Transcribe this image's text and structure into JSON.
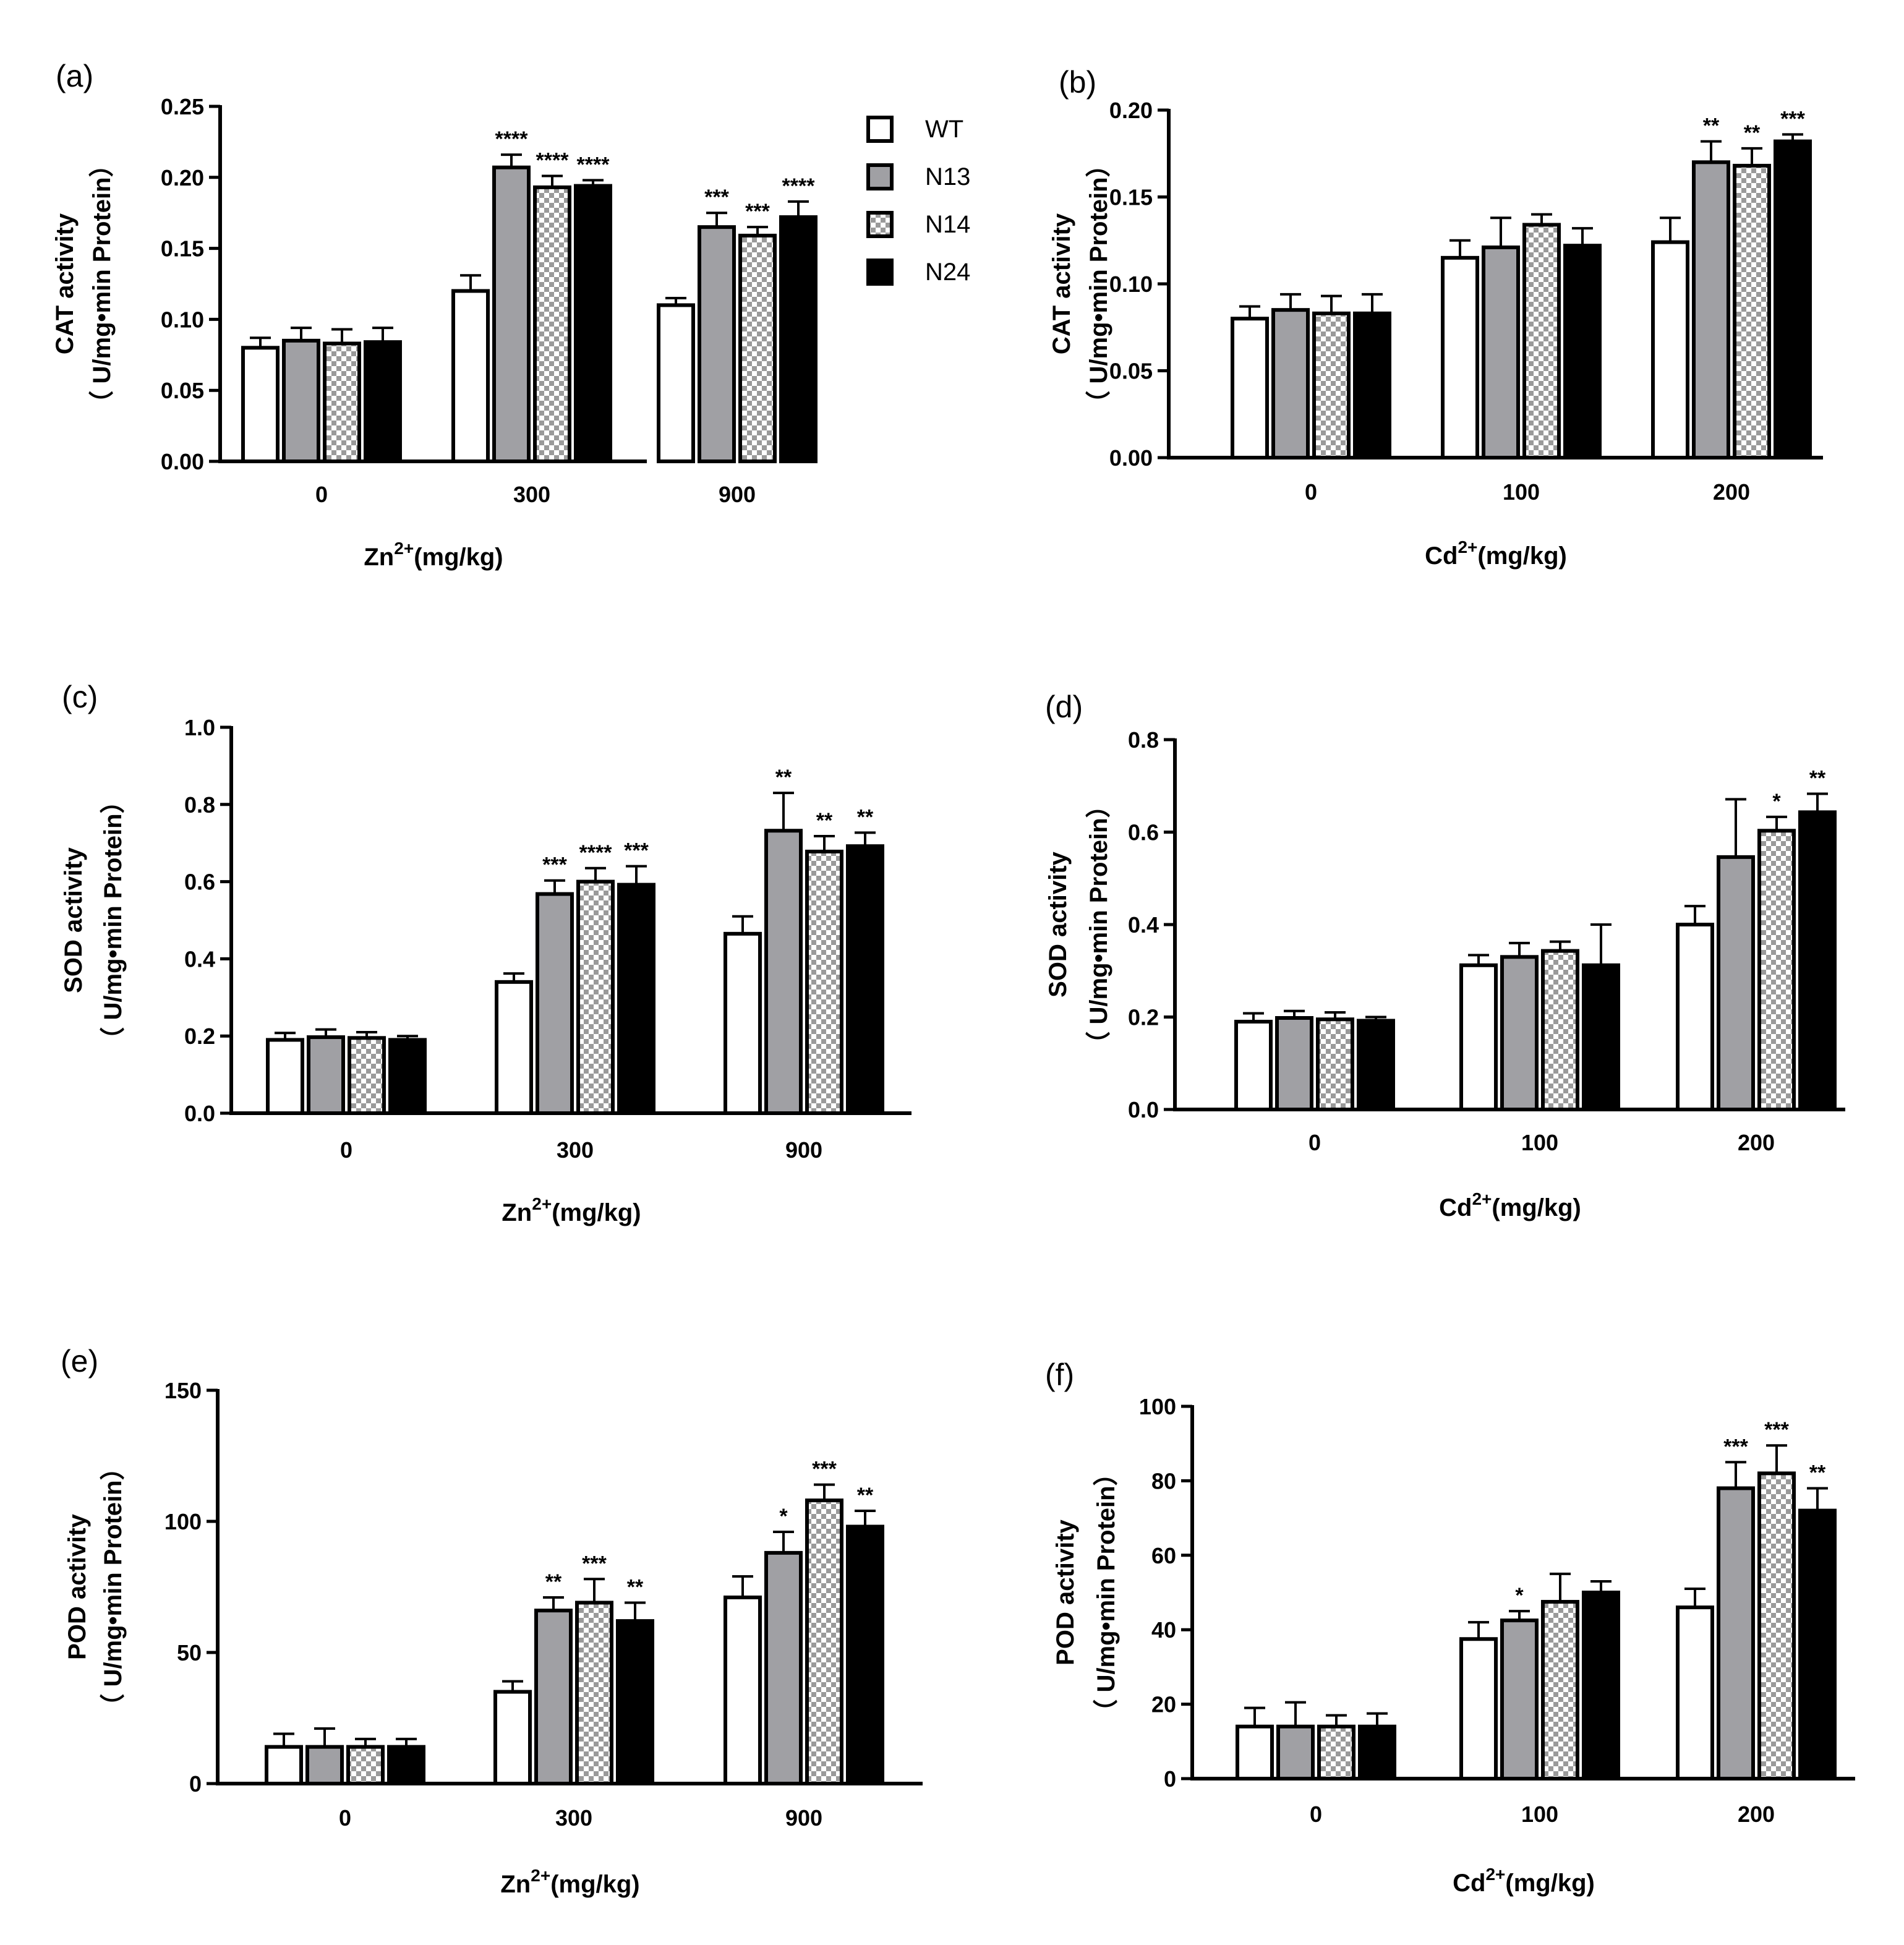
{
  "legend": [
    "WT",
    "N13",
    "N14",
    "N24"
  ],
  "colors": {
    "WT": "#ffffff",
    "N13": "#a0a0a4",
    "N14": "pattern",
    "N24": "#000000",
    "axis": "#000000"
  },
  "chart_data": [
    {
      "id": "a",
      "panel_label": "(a)",
      "type": "bar",
      "title": "",
      "ylabel_line1": "CAT activity",
      "ylabel_line2": "（ U/mg•min Protein）",
      "xlabel_base": "Zn",
      "xlabel_sup": "2+",
      "xlabel_unit": "(mg/kg)",
      "categories": [
        "0",
        "300",
        "900"
      ],
      "ylim": [
        0,
        0.25
      ],
      "yticks": [
        0.0,
        0.05,
        0.1,
        0.15,
        0.2,
        0.25
      ],
      "ytick_labels": [
        "0.00",
        "0.05",
        "0.10",
        "0.15",
        "0.20",
        "0.25"
      ],
      "series": [
        {
          "name": "WT",
          "values": [
            0.08,
            0.12,
            0.11
          ],
          "errors": [
            0.007,
            0.011,
            0.005
          ],
          "sig": [
            "",
            "",
            ""
          ]
        },
        {
          "name": "N13",
          "values": [
            0.085,
            0.207,
            0.165
          ],
          "errors": [
            0.009,
            0.009,
            0.01
          ],
          "sig": [
            "",
            "****",
            "***"
          ]
        },
        {
          "name": "N14",
          "values": [
            0.083,
            0.193,
            0.159
          ],
          "errors": [
            0.01,
            0.008,
            0.006
          ],
          "sig": [
            "",
            "****",
            "***"
          ]
        },
        {
          "name": "N24",
          "values": [
            0.084,
            0.194,
            0.172
          ],
          "errors": [
            0.01,
            0.004,
            0.011
          ],
          "sig": [
            "",
            "****",
            "****"
          ]
        }
      ]
    },
    {
      "id": "b",
      "panel_label": "(b)",
      "type": "bar",
      "title": "",
      "ylabel_line1": "CAT activity",
      "ylabel_line2": "（ U/mg•min Protein）",
      "xlabel_base": "Cd",
      "xlabel_sup": "2+",
      "xlabel_unit": "(mg/kg)",
      "categories": [
        "0",
        "100",
        "200"
      ],
      "ylim": [
        0,
        0.2
      ],
      "yticks": [
        0.0,
        0.05,
        0.1,
        0.15,
        0.2
      ],
      "ytick_labels": [
        "0.00",
        "0.05",
        "0.10",
        "0.15",
        "0.20"
      ],
      "series": [
        {
          "name": "WT",
          "values": [
            0.08,
            0.115,
            0.124
          ],
          "errors": [
            0.007,
            0.01,
            0.014
          ],
          "sig": [
            "",
            "",
            ""
          ]
        },
        {
          "name": "N13",
          "values": [
            0.085,
            0.121,
            0.17
          ],
          "errors": [
            0.009,
            0.017,
            0.012
          ],
          "sig": [
            "",
            "",
            "**"
          ]
        },
        {
          "name": "N14",
          "values": [
            0.083,
            0.134,
            0.168
          ],
          "errors": [
            0.01,
            0.006,
            0.01
          ],
          "sig": [
            "",
            "",
            "**"
          ]
        },
        {
          "name": "N24",
          "values": [
            0.083,
            0.122,
            0.182
          ],
          "errors": [
            0.011,
            0.01,
            0.004
          ],
          "sig": [
            "",
            "",
            "***"
          ]
        }
      ]
    },
    {
      "id": "c",
      "panel_label": "(c)",
      "type": "bar",
      "title": "",
      "ylabel_line1": "SOD activity",
      "ylabel_line2": "（ U/mg•min Protein）",
      "xlabel_base": "Zn",
      "xlabel_sup": "2+",
      "xlabel_unit": "(mg/kg)",
      "categories": [
        "0",
        "300",
        "900"
      ],
      "ylim": [
        0,
        1.0
      ],
      "yticks": [
        0.0,
        0.2,
        0.4,
        0.6,
        0.8,
        1.0
      ],
      "ytick_labels": [
        "0.0",
        "0.2",
        "0.4",
        "0.6",
        "0.8",
        "1.0"
      ],
      "series": [
        {
          "name": "WT",
          "values": [
            0.19,
            0.34,
            0.465
          ],
          "errors": [
            0.018,
            0.022,
            0.045
          ],
          "sig": [
            "",
            "",
            ""
          ]
        },
        {
          "name": "N13",
          "values": [
            0.197,
            0.568,
            0.732
          ],
          "errors": [
            0.02,
            0.035,
            0.098
          ],
          "sig": [
            "",
            "***",
            "**"
          ]
        },
        {
          "name": "N14",
          "values": [
            0.195,
            0.6,
            0.678
          ],
          "errors": [
            0.015,
            0.035,
            0.04
          ],
          "sig": [
            "",
            "****",
            "**"
          ]
        },
        {
          "name": "N24",
          "values": [
            0.19,
            0.592,
            0.692
          ],
          "errors": [
            0.01,
            0.048,
            0.035
          ],
          "sig": [
            "",
            "***",
            "**"
          ]
        }
      ]
    },
    {
      "id": "d",
      "panel_label": "(d)",
      "type": "bar",
      "title": "",
      "ylabel_line1": "SOD activity",
      "ylabel_line2": "（ U/mg•min Protein）",
      "xlabel_base": "Cd",
      "xlabel_sup": "2+",
      "xlabel_unit": "(mg/kg)",
      "categories": [
        "0",
        "100",
        "200"
      ],
      "ylim": [
        0,
        0.8
      ],
      "yticks": [
        0.0,
        0.2,
        0.4,
        0.6,
        0.8
      ],
      "ytick_labels": [
        "0.0",
        "0.2",
        "0.4",
        "0.6",
        "0.8"
      ],
      "series": [
        {
          "name": "WT",
          "values": [
            0.19,
            0.312,
            0.4
          ],
          "errors": [
            0.018,
            0.022,
            0.04
          ],
          "sig": [
            "",
            "",
            ""
          ]
        },
        {
          "name": "N13",
          "values": [
            0.198,
            0.33,
            0.546
          ],
          "errors": [
            0.015,
            0.03,
            0.125
          ],
          "sig": [
            "",
            "",
            ""
          ]
        },
        {
          "name": "N14",
          "values": [
            0.195,
            0.343,
            0.603
          ],
          "errors": [
            0.015,
            0.02,
            0.03
          ],
          "sig": [
            "",
            "",
            "*"
          ]
        },
        {
          "name": "N24",
          "values": [
            0.192,
            0.312,
            0.643
          ],
          "errors": [
            0.008,
            0.088,
            0.04
          ],
          "sig": [
            "",
            "",
            "**"
          ]
        }
      ]
    },
    {
      "id": "e",
      "panel_label": "(e)",
      "type": "bar",
      "title": "",
      "ylabel_line1": "POD activity",
      "ylabel_line2": "（ U/mg•min Protein）",
      "xlabel_base": "Zn",
      "xlabel_sup": "2+",
      "xlabel_unit": "(mg/kg)",
      "categories": [
        "0",
        "300",
        "900"
      ],
      "ylim": [
        0,
        150
      ],
      "yticks": [
        0,
        50,
        100,
        150
      ],
      "ytick_labels": [
        "0",
        "50",
        "100",
        "150"
      ],
      "series": [
        {
          "name": "WT",
          "values": [
            14,
            35,
            71
          ],
          "errors": [
            5,
            4,
            8
          ],
          "sig": [
            "",
            "",
            ""
          ]
        },
        {
          "name": "N13",
          "values": [
            14,
            66,
            88
          ],
          "errors": [
            7,
            5,
            8
          ],
          "sig": [
            "",
            "**",
            "*"
          ]
        },
        {
          "name": "N14",
          "values": [
            14,
            69,
            108
          ],
          "errors": [
            3,
            9,
            6
          ],
          "sig": [
            "",
            "***",
            "***"
          ]
        },
        {
          "name": "N24",
          "values": [
            14,
            62,
            98
          ],
          "errors": [
            3,
            7,
            6
          ],
          "sig": [
            "",
            "**",
            "**"
          ]
        }
      ]
    },
    {
      "id": "f",
      "panel_label": "(f)",
      "type": "bar",
      "title": "",
      "ylabel_line1": "POD activity",
      "ylabel_line2": "（ U/mg•min Protein）",
      "xlabel_base": "Cd",
      "xlabel_sup": "2+",
      "xlabel_unit": "(mg/kg)",
      "categories": [
        "0",
        "100",
        "200"
      ],
      "ylim": [
        0,
        100
      ],
      "yticks": [
        0,
        20,
        40,
        60,
        80,
        100
      ],
      "ytick_labels": [
        "0",
        "20",
        "40",
        "60",
        "80",
        "100"
      ],
      "series": [
        {
          "name": "WT",
          "values": [
            14,
            37.5,
            46
          ],
          "errors": [
            5,
            4.5,
            5
          ],
          "sig": [
            "",
            "",
            ""
          ]
        },
        {
          "name": "N13",
          "values": [
            14,
            42.5,
            78
          ],
          "errors": [
            6.5,
            2.5,
            7
          ],
          "sig": [
            "",
            "*",
            "***"
          ]
        },
        {
          "name": "N14",
          "values": [
            14,
            47.5,
            82
          ],
          "errors": [
            3,
            7.5,
            7.5
          ],
          "sig": [
            "",
            "",
            "***"
          ]
        },
        {
          "name": "N24",
          "values": [
            14,
            50,
            72
          ],
          "errors": [
            3.5,
            3,
            6
          ],
          "sig": [
            "",
            "",
            "**"
          ]
        }
      ]
    }
  ]
}
